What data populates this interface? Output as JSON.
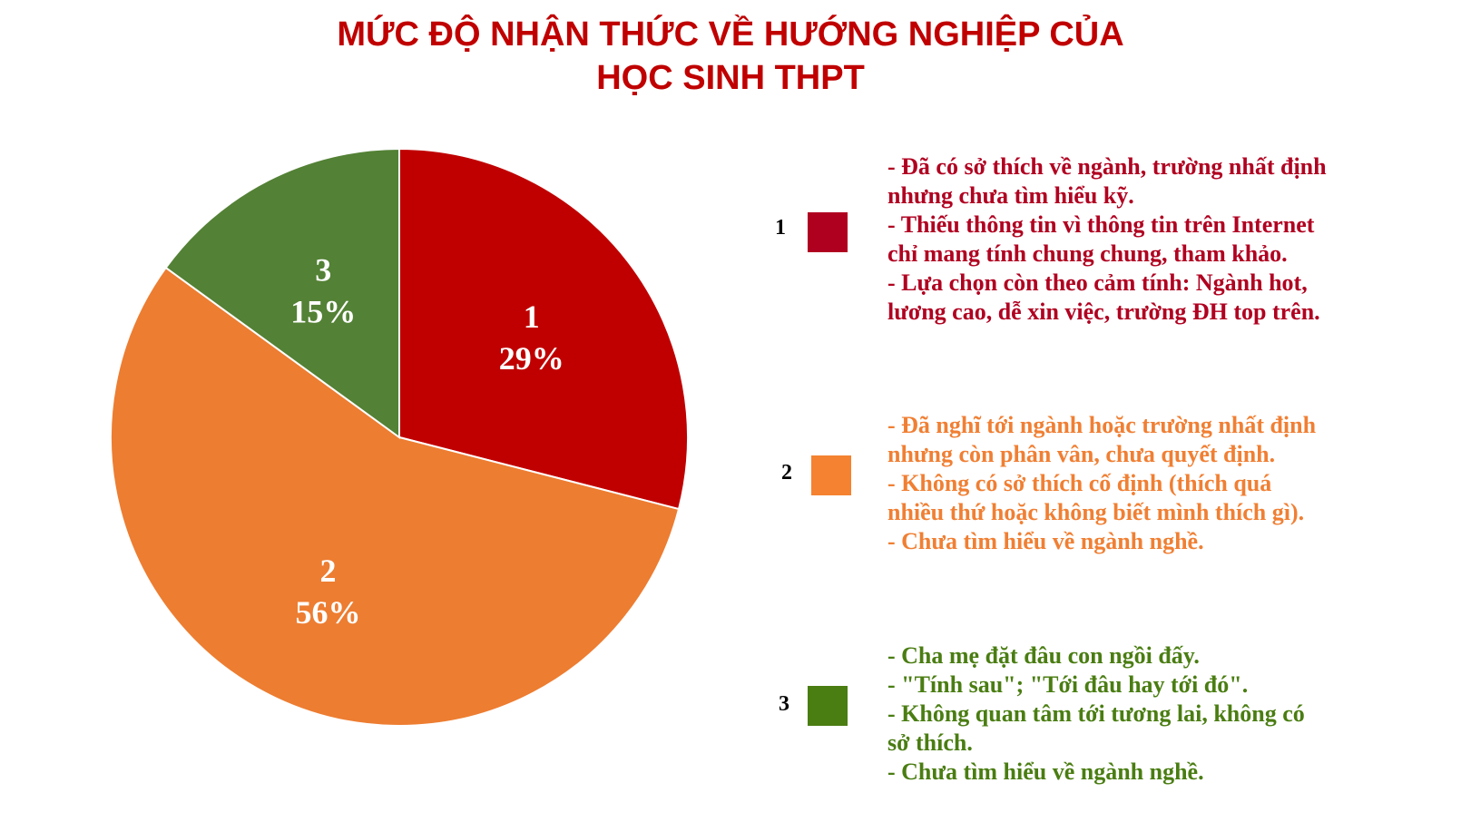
{
  "title": {
    "line1": "MỨC ĐỘ NHẬN THỨC VỀ HƯỚNG NGHIỆP CỦA",
    "line2": "HỌC SINH THPT"
  },
  "chart_data": {
    "type": "pie",
    "title": "MỨC ĐỘ NHẬN THỨC VỀ HƯỚNG NGHIỆP CỦA HỌC SINH THPT",
    "categories": [
      "1",
      "2",
      "3"
    ],
    "values": [
      29,
      56,
      15
    ],
    "labels": [
      "29%",
      "56%",
      "15%"
    ],
    "colors": [
      "#c00000",
      "#ed7d31",
      "#538135"
    ],
    "label_color": "#ffffff",
    "start": "12 o'clock, clockwise",
    "legend_placement": "right"
  },
  "legend": [
    {
      "label": "1",
      "swatch_color": "#b00020",
      "text_color": "#b00020",
      "lines": [
        "- Đã có sở thích về ngành, trường nhất định",
        "nhưng chưa tìm hiểu kỹ.",
        "- Thiếu thông tin vì thông tin trên Internet",
        "chỉ mang tính chung chung, tham khảo.",
        "- Lựa chọn còn theo cảm tính: Ngành hot,",
        "lương cao, dễ xin việc, trường ĐH top trên."
      ]
    },
    {
      "label": "2",
      "swatch_color": "#f48230",
      "text_color": "#f07f33",
      "lines": [
        "- Đã nghĩ tới ngành hoặc trường nhất định",
        "nhưng còn phân vân, chưa quyết định.",
        "- Không có sở thích cố định (thích quá",
        "nhiều thứ hoặc không biết mình thích gì).",
        "- Chưa tìm hiểu về ngành nghề."
      ]
    },
    {
      "label": "3",
      "swatch_color": "#4a7d12",
      "text_color": "#4a7d12",
      "lines": [
        "- Cha mẹ đặt đâu con ngồi đấy.",
        "- \"Tính sau\"; \"Tới đâu hay tới đó\".",
        "- Không quan tâm tới tương lai, không có",
        "sở thích.",
        "- Chưa tìm hiểu về ngành nghề."
      ]
    }
  ]
}
